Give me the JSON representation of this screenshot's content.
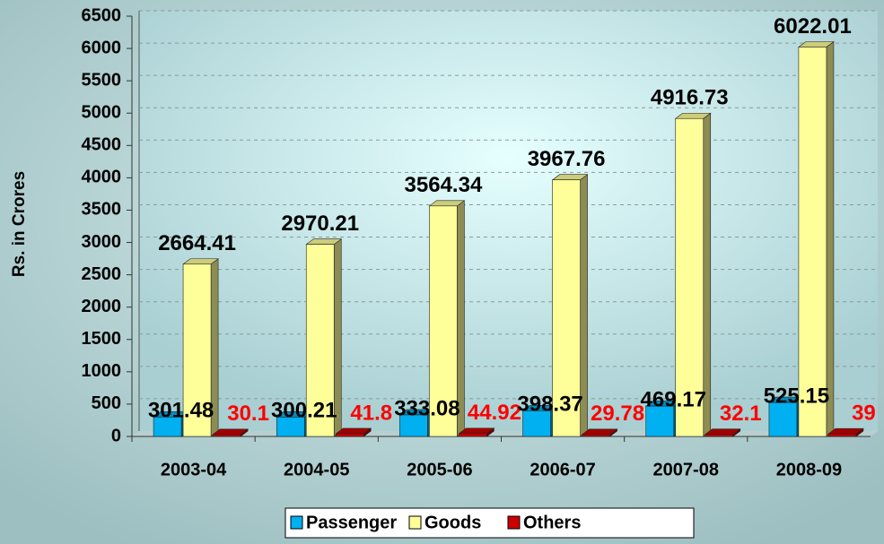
{
  "chart_data": {
    "type": "bar3d",
    "y_label": "Rs. in Crores",
    "categories": [
      "2003-04",
      "2004-05",
      "2005-06",
      "2006-07",
      "2007-08",
      "2008-09"
    ],
    "series": [
      {
        "name": "Passenger",
        "color": "#00b0f0",
        "label_color": "#000000",
        "values": [
          301.48,
          300.21,
          333.08,
          398.37,
          469.17,
          525.15
        ]
      },
      {
        "name": "Goods",
        "color": "#ffff99",
        "label_color": "#000000",
        "values": [
          2664.41,
          2970.21,
          3564.34,
          3967.76,
          4916.73,
          6022.01
        ]
      },
      {
        "name": "Others",
        "color": "#cc0000",
        "label_color": "#ff0000",
        "values": [
          30.1,
          41.8,
          44.92,
          29.78,
          32.1,
          39
        ]
      }
    ],
    "ylim": [
      0,
      6500
    ],
    "yticks": [
      0,
      500,
      1000,
      1500,
      2000,
      2500,
      3000,
      3500,
      4000,
      4500,
      5000,
      5500,
      6000,
      6500
    ],
    "grid": true,
    "legend": "bottom"
  }
}
